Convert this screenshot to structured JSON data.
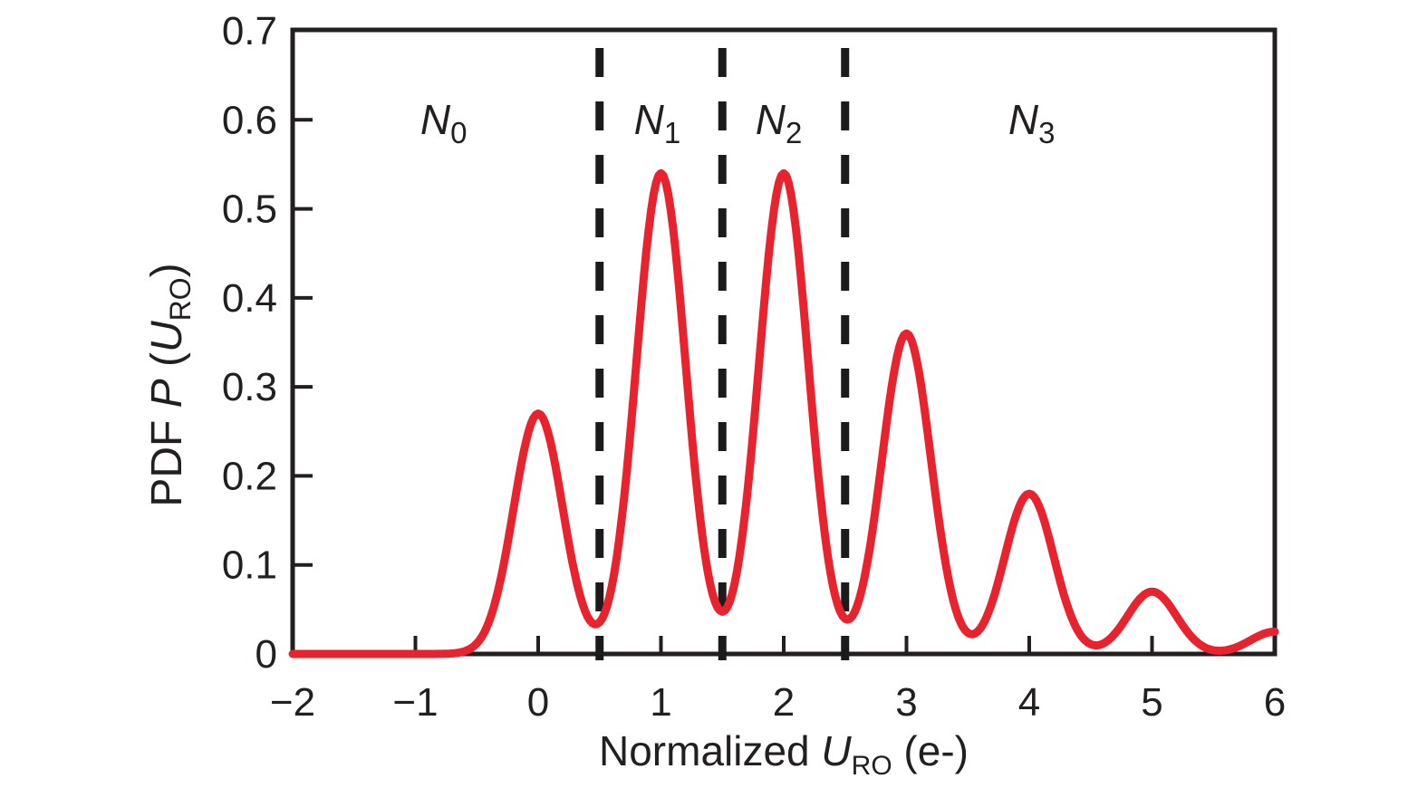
{
  "colors": {
    "background": "#ffffff",
    "text": "#231f20",
    "frame": "#231f20",
    "curve": "#e8232e",
    "boundary": "#1b1b1b"
  },
  "chart_data": {
    "type": "line",
    "title": "",
    "xlabel": {
      "plain": "Normalized U_RO (e-)",
      "prefix": "Normalized ",
      "variable": "U",
      "subscript": "RO",
      "suffix": " (e-)"
    },
    "ylabel": {
      "plain": "PDF P (U_RO)",
      "prefix": "PDF ",
      "variable": "P",
      "open": " (",
      "variable2": "U",
      "subscript": "RO",
      "close": ")"
    },
    "xlim": [
      -2,
      6
    ],
    "ylim": [
      0,
      0.7
    ],
    "grid": false,
    "frame": true,
    "legend": "none",
    "x_ticks": {
      "values": [
        -2,
        -1,
        0,
        1,
        2,
        3,
        4,
        5,
        6
      ],
      "labels": [
        "−2",
        "−1",
        "0",
        "1",
        "2",
        "3",
        "4",
        "5",
        "6"
      ]
    },
    "y_ticks": {
      "values": [
        0,
        0.1,
        0.2,
        0.3,
        0.4,
        0.5,
        0.6,
        0.7
      ],
      "labels": [
        "0",
        "0.1",
        "0.2",
        "0.3",
        "0.4",
        "0.5",
        "0.6",
        "0.7"
      ]
    },
    "series": [
      {
        "name": "pdf-curve",
        "color": "#e8232e",
        "line_width": 9,
        "model": "sum_of_gaussians",
        "sigma": 0.2,
        "components": [
          {
            "center": 0,
            "amplitude": 0.27
          },
          {
            "center": 1,
            "amplitude": 0.54
          },
          {
            "center": 2,
            "amplitude": 0.54
          },
          {
            "center": 3,
            "amplitude": 0.36
          },
          {
            "center": 4,
            "amplitude": 0.18
          },
          {
            "center": 5,
            "amplitude": 0.07
          },
          {
            "center": 6,
            "amplitude": 0.025
          }
        ],
        "peaks_x": [
          0,
          1,
          2,
          3,
          4,
          5
        ],
        "peaks_y": [
          0.27,
          0.54,
          0.54,
          0.36,
          0.18,
          0.07
        ],
        "valleys_x": [
          0.5,
          1.5,
          2.5,
          3.5,
          4.5,
          5.55
        ],
        "valleys_y": [
          0.036,
          0.047,
          0.04,
          0.024,
          0.011,
          0.004
        ],
        "value_at_xmax": 0.025
      }
    ],
    "boundary_lines": {
      "style": "dashed",
      "color": "#1b1b1b",
      "x_values": [
        0.5,
        1.5,
        2.5
      ]
    },
    "region_labels": [
      {
        "text": "N",
        "subscript": "0",
        "x": -0.77,
        "y": 0.584
      },
      {
        "text": "N",
        "subscript": "1",
        "x": 0.97,
        "y": 0.584
      },
      {
        "text": "N",
        "subscript": "2",
        "x": 1.96,
        "y": 0.584
      },
      {
        "text": "N",
        "subscript": "3",
        "x": 4.02,
        "y": 0.584
      }
    ]
  }
}
